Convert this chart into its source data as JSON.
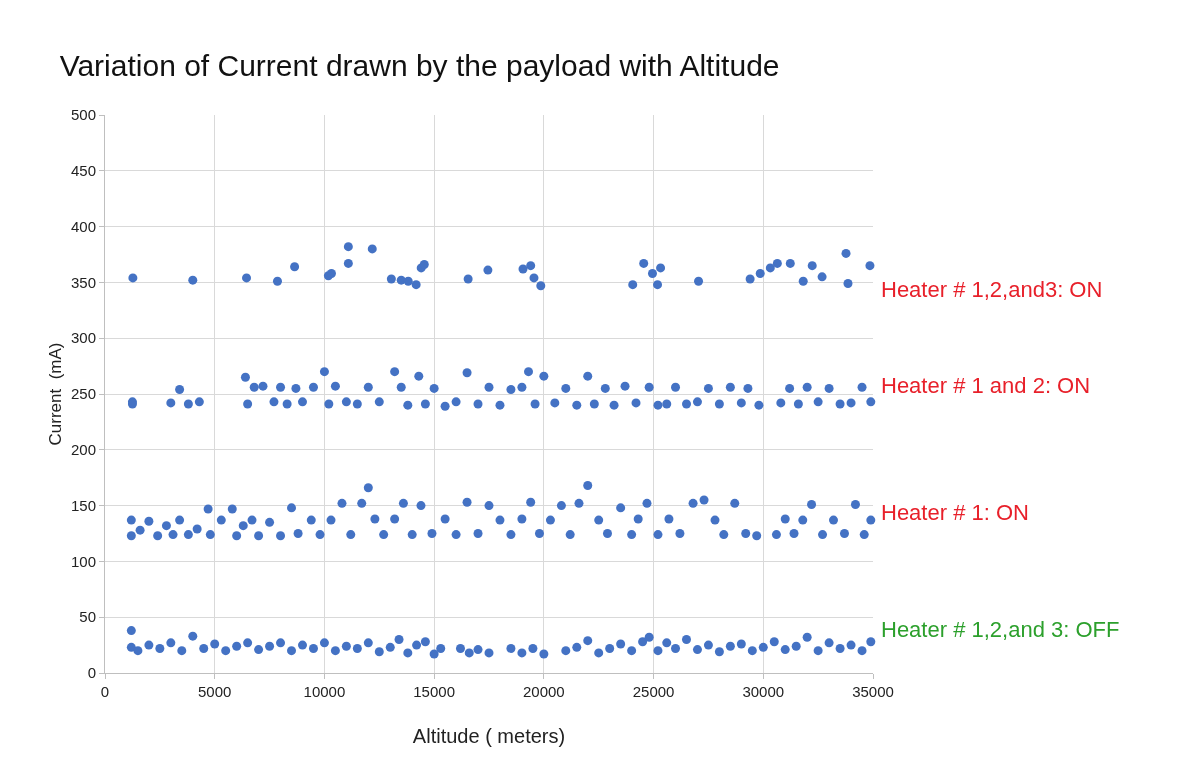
{
  "chart_data": {
    "type": "scatter",
    "title": "Variation of Current drawn by the payload with Altitude",
    "xlabel": "Altitude ( meters)",
    "ylabel": "Current  (mA)",
    "xlim": [
      0,
      35000
    ],
    "xticks": [
      0,
      5000,
      10000,
      15000,
      20000,
      25000,
      30000,
      35000
    ],
    "ylim": [
      0,
      500
    ],
    "yticks": [
      0,
      50,
      100,
      150,
      200,
      250,
      300,
      350,
      400,
      450,
      500
    ],
    "grid": true,
    "marker": "circle",
    "annotations": [
      "Heater # 1,2,and3: ON",
      "Heater # 1 and 2: ON",
      "Heater # 1: ON",
      "Heater # 1,2,and 3: OFF"
    ],
    "series": [
      {
        "color": "#4472c4",
        "x": [
          1270,
          4000,
          6450,
          7860,
          8640,
          10180,
          10320,
          11090,
          11090,
          12180,
          13050,
          13500,
          13820,
          14180,
          14410,
          14550,
          16550,
          17450,
          19050,
          19400,
          19550,
          19860,
          24050,
          24550,
          24950,
          25320,
          25180,
          27050,
          29400,
          29860,
          30320,
          30640,
          31230,
          31820,
          32230,
          32680,
          33770,
          33860,
          34860,
          1250,
          1250,
          3000,
          3400,
          3800,
          4300,
          6400,
          6500,
          6800,
          7200,
          7700,
          8000,
          8300,
          8700,
          9000,
          9500,
          10000,
          10200,
          10500,
          11000,
          11500,
          12000,
          12500,
          13200,
          13500,
          13800,
          14300,
          14600,
          15000,
          15500,
          16000,
          16500,
          17000,
          17500,
          18000,
          18500,
          19000,
          19300,
          19600,
          20000,
          20500,
          21000,
          21500,
          22000,
          22300,
          22800,
          23200,
          23700,
          24200,
          24800,
          25200,
          25600,
          26000,
          26500,
          27000,
          27500,
          28000,
          28500,
          29000,
          29300,
          29800,
          30800,
          31200,
          31600,
          32000,
          32500,
          33000,
          33500,
          34000,
          34500,
          34900,
          1200,
          1200,
          1600,
          2000,
          2400,
          2800,
          3100,
          3400,
          3800,
          4200,
          4700,
          4800,
          5300,
          5800,
          6000,
          6300,
          6700,
          7000,
          7500,
          8000,
          8500,
          8800,
          9400,
          9800,
          10300,
          10800,
          11200,
          11700,
          12000,
          12300,
          12700,
          13200,
          13600,
          14000,
          14400,
          14900,
          15500,
          16000,
          16500,
          17000,
          17500,
          18000,
          18500,
          19000,
          19400,
          19800,
          20300,
          20800,
          21200,
          21600,
          22000,
          22500,
          22900,
          23500,
          24000,
          24300,
          24700,
          25200,
          25700,
          26200,
          26800,
          27300,
          27800,
          28200,
          28700,
          29200,
          29700,
          30600,
          31000,
          31400,
          31800,
          32200,
          32700,
          33200,
          33700,
          34200,
          34600,
          34900,
          1200,
          1200,
          1500,
          2000,
          2500,
          3000,
          3500,
          4000,
          4500,
          5000,
          5500,
          6000,
          6500,
          7000,
          7500,
          8000,
          8500,
          9000,
          9500,
          10000,
          10500,
          11000,
          11500,
          12000,
          12500,
          13000,
          13400,
          13800,
          14200,
          14600,
          15000,
          15300,
          16200,
          16600,
          17000,
          17500,
          18500,
          19000,
          19500,
          20000,
          21000,
          21500,
          22000,
          22500,
          23000,
          23500,
          24000,
          24500,
          24800,
          25200,
          25600,
          26000,
          26500,
          27000,
          27500,
          28000,
          28500,
          29000,
          29500,
          30000,
          30500,
          31000,
          31500,
          32000,
          32500,
          33000,
          33500,
          34000,
          34500,
          34900
        ],
        "values": [
          354,
          352,
          354,
          351,
          364,
          356,
          358,
          382,
          367,
          380,
          353,
          352,
          351,
          348,
          363,
          366,
          353,
          361,
          362,
          365,
          354,
          347,
          348,
          367,
          358,
          363,
          348,
          351,
          353,
          358,
          363,
          367,
          367,
          351,
          365,
          355,
          376,
          349,
          365,
          243,
          241,
          242,
          254,
          241,
          243,
          265,
          241,
          256,
          257,
          243,
          256,
          241,
          255,
          243,
          256,
          270,
          241,
          257,
          243,
          241,
          256,
          243,
          270,
          256,
          240,
          266,
          241,
          255,
          239,
          243,
          269,
          241,
          256,
          240,
          254,
          256,
          270,
          241,
          266,
          242,
          255,
          240,
          266,
          241,
          255,
          240,
          257,
          242,
          256,
          240,
          241,
          256,
          241,
          243,
          255,
          241,
          256,
          242,
          255,
          240,
          242,
          255,
          241,
          256,
          243,
          255,
          241,
          242,
          256,
          243,
          123,
          137,
          128,
          136,
          123,
          132,
          124,
          137,
          124,
          129,
          147,
          124,
          137,
          147,
          123,
          132,
          137,
          123,
          135,
          123,
          148,
          125,
          137,
          124,
          137,
          152,
          124,
          152,
          166,
          138,
          124,
          138,
          152,
          124,
          150,
          125,
          138,
          124,
          153,
          125,
          150,
          137,
          124,
          138,
          153,
          125,
          137,
          150,
          124,
          152,
          168,
          137,
          125,
          148,
          124,
          138,
          152,
          124,
          138,
          125,
          152,
          155,
          137,
          124,
          152,
          125,
          123,
          124,
          138,
          125,
          137,
          151,
          124,
          137,
          125,
          151,
          124,
          137,
          38,
          23,
          20,
          25,
          22,
          27,
          20,
          33,
          22,
          26,
          20,
          24,
          27,
          21,
          24,
          27,
          20,
          25,
          22,
          27,
          20,
          24,
          22,
          27,
          19,
          23,
          30,
          18,
          25,
          28,
          17,
          22,
          22,
          18,
          21,
          18,
          22,
          18,
          22,
          17,
          20,
          23,
          29,
          18,
          22,
          26,
          20,
          28,
          32,
          20,
          27,
          22,
          30,
          21,
          25,
          19,
          24,
          26,
          20,
          23,
          28,
          21,
          24,
          32,
          20,
          27,
          22,
          25,
          20,
          28
        ]
      }
    ]
  }
}
